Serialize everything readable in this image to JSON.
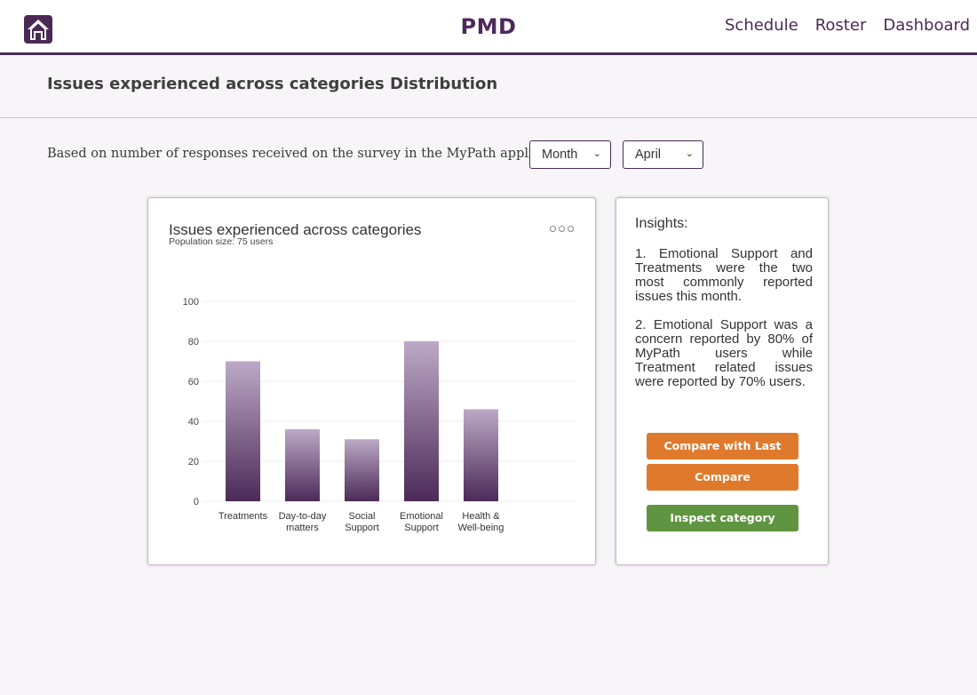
{
  "header": {
    "brand": "PMD",
    "nav": [
      "Schedule",
      "Roster",
      "Dashboard"
    ]
  },
  "page": {
    "title": "Issues experienced across categories Distribution"
  },
  "filters": {
    "label": "Based on number of responses received on the survey in the MyPath application per",
    "period": "Month",
    "month": "April"
  },
  "chart_card": {
    "title": "Issues experienced across categories",
    "subtitle": "Population size: 75 users"
  },
  "chart_data": {
    "type": "bar",
    "title": "Issues experienced across categories",
    "subtitle": "Population size: 75 users",
    "categories": [
      [
        "Treatments"
      ],
      [
        "Day-to-day",
        "matters"
      ],
      [
        "Social",
        "Support"
      ],
      [
        "Emotional",
        "Support"
      ],
      [
        "Health &",
        "Well-being"
      ]
    ],
    "values": [
      70,
      36,
      31,
      80,
      46
    ],
    "ylim": [
      0,
      100
    ],
    "yticks": [
      0,
      20,
      40,
      60,
      80,
      100
    ],
    "grid": true,
    "colors": {
      "bar_top": "#bda9c6",
      "bar_bottom": "#4b2a58"
    }
  },
  "insights": {
    "title": "Insights:",
    "items": [
      "1. Emotional Support and Treatments were the two most commonly reported issues this month.",
      "2. Emotional Support was a concern reported by 80% of MyPath users while Treatment related issues were reported by 70% users."
    ],
    "buttons": {
      "compare_last": "Compare with Last month",
      "compare": "Compare",
      "inspect": "Inspect category"
    }
  },
  "colors": {
    "brand": "#4d2a5b",
    "orange": "#df7a2c",
    "green": "#5f9540"
  }
}
